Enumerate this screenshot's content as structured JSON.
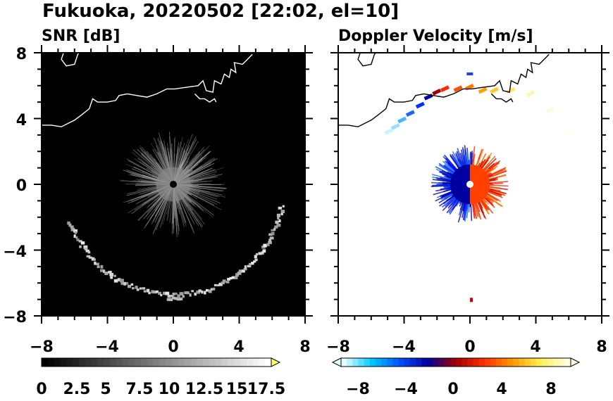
{
  "chart_data": {
    "title": "Fukuoka, 20220502 [22:02, el=10]",
    "panels": [
      {
        "type": "heatmap",
        "title": "SNR [dB]",
        "xlim": [
          -8,
          8
        ],
        "ylim": [
          -8,
          8
        ],
        "xticks": [
          "−8",
          "−4",
          "0",
          "4",
          "8"
        ],
        "yticks": [
          "8",
          "4",
          "0",
          "−4",
          "−8"
        ],
        "background_color": "#000000",
        "colorbar": {
          "range": [
            0,
            18.5
          ],
          "tick_labels": [
            "0",
            "2.5",
            "5",
            "7.5",
            "10",
            "12.5",
            "15",
            "17.5"
          ],
          "colors": [
            "#000000",
            "#ffffff"
          ],
          "extend": "max",
          "extend_color": "#ffff66"
        },
        "features": {
          "central_echo_radius_km": 3.0,
          "radar_site": [
            0,
            0
          ],
          "clutter_arc_radius_km": 6.7,
          "isolated_echo": [
            0,
            -6.9
          ]
        }
      },
      {
        "type": "heatmap",
        "title": "Doppler Velocity [m/s]",
        "xlim": [
          -8,
          8
        ],
        "ylim": [
          -8,
          8
        ],
        "xticks": [
          "−8",
          "−4",
          "0",
          "4",
          "8"
        ],
        "yticks": [],
        "background_color": "#ffffff",
        "colorbar": {
          "range": [
            -10,
            10
          ],
          "tick_labels": [
            "−8",
            "−4",
            "0",
            "4",
            "8"
          ],
          "colors": [
            "#e6ffff",
            "#00c8ff",
            "#0050ff",
            "#0000a0",
            "#a00000",
            "#ff3000",
            "#ff9600",
            "#ffee55",
            "#ffffe0"
          ],
          "extend": "both"
        },
        "features": {
          "central_echo_radius_km": 2.2,
          "radar_site": [
            0,
            0
          ],
          "toward_color": "#0000a0",
          "away_color": "#ff4000"
        }
      }
    ]
  }
}
